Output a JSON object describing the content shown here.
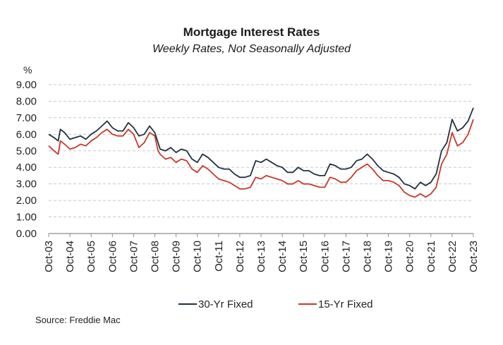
{
  "chart_data": {
    "type": "line",
    "title": "Mortgage Interest Rates",
    "subtitle": "Weekly Rates, Not Seasonally Adjusted",
    "ylabel": "%",
    "xlabel": "",
    "ylim": [
      0,
      9
    ],
    "yticks": [
      "0.00",
      "1.00",
      "2.00",
      "3.00",
      "4.00",
      "5.00",
      "6.00",
      "7.00",
      "8.00",
      "9.00"
    ],
    "xticks": [
      "Oct-03",
      "Oct-04",
      "Oct-05",
      "Oct-06",
      "Oct-07",
      "Oct-08",
      "Oct-09",
      "Oct-10",
      "Oct-11",
      "Oct-12",
      "Oct-13",
      "Oct-14",
      "Oct-15",
      "Oct-16",
      "Oct-17",
      "Oct-18",
      "Oct-19",
      "Oct-20",
      "Oct-21",
      "Oct-22",
      "Oct-23"
    ],
    "xlim": [
      2003.75,
      2023.75
    ],
    "grid": "horizontal-dashed",
    "legend_position": "bottom-center",
    "series": [
      {
        "name": "30-Yr Fixed",
        "color": "#1f3140",
        "x": [
          2003.75,
          2004.0,
          2004.2,
          2004.3,
          2004.5,
          2004.75,
          2005.0,
          2005.25,
          2005.5,
          2005.75,
          2006.0,
          2006.25,
          2006.5,
          2006.75,
          2007.0,
          2007.25,
          2007.5,
          2007.75,
          2008.0,
          2008.25,
          2008.5,
          2008.75,
          2008.9,
          2009.0,
          2009.25,
          2009.5,
          2009.75,
          2010.0,
          2010.25,
          2010.5,
          2010.75,
          2011.0,
          2011.25,
          2011.5,
          2011.75,
          2012.0,
          2012.25,
          2012.5,
          2012.75,
          2013.0,
          2013.25,
          2013.5,
          2013.75,
          2014.0,
          2014.25,
          2014.5,
          2014.75,
          2015.0,
          2015.25,
          2015.5,
          2015.75,
          2016.0,
          2016.25,
          2016.5,
          2016.75,
          2017.0,
          2017.25,
          2017.5,
          2017.75,
          2018.0,
          2018.25,
          2018.5,
          2018.75,
          2019.0,
          2019.25,
          2019.5,
          2019.75,
          2020.0,
          2020.25,
          2020.5,
          2020.75,
          2021.0,
          2021.25,
          2021.5,
          2021.75,
          2022.0,
          2022.25,
          2022.5,
          2022.75,
          2023.0,
          2023.25,
          2023.5,
          2023.75
        ],
        "values": [
          6.0,
          5.8,
          5.6,
          6.3,
          6.1,
          5.7,
          5.8,
          5.9,
          5.7,
          6.0,
          6.2,
          6.5,
          6.8,
          6.4,
          6.2,
          6.2,
          6.7,
          6.4,
          5.9,
          6.0,
          6.5,
          6.1,
          5.5,
          5.1,
          5.0,
          5.2,
          4.9,
          5.1,
          5.0,
          4.5,
          4.3,
          4.8,
          4.6,
          4.3,
          4.0,
          3.9,
          3.9,
          3.6,
          3.4,
          3.4,
          3.5,
          4.4,
          4.3,
          4.5,
          4.3,
          4.1,
          4.0,
          3.7,
          3.7,
          4.0,
          3.8,
          3.8,
          3.6,
          3.5,
          3.5,
          4.2,
          4.1,
          3.9,
          3.9,
          4.0,
          4.4,
          4.5,
          4.8,
          4.5,
          4.1,
          3.8,
          3.7,
          3.6,
          3.4,
          3.0,
          2.9,
          2.7,
          3.1,
          2.9,
          3.1,
          3.6,
          5.0,
          5.5,
          6.9,
          6.2,
          6.4,
          6.8,
          7.6
        ]
      },
      {
        "name": "15-Yr Fixed",
        "color": "#c8382a",
        "x": [
          2003.75,
          2004.0,
          2004.2,
          2004.3,
          2004.5,
          2004.75,
          2005.0,
          2005.25,
          2005.5,
          2005.75,
          2006.0,
          2006.25,
          2006.5,
          2006.75,
          2007.0,
          2007.25,
          2007.5,
          2007.75,
          2008.0,
          2008.25,
          2008.5,
          2008.75,
          2008.9,
          2009.0,
          2009.25,
          2009.5,
          2009.75,
          2010.0,
          2010.25,
          2010.5,
          2010.75,
          2011.0,
          2011.25,
          2011.5,
          2011.75,
          2012.0,
          2012.25,
          2012.5,
          2012.75,
          2013.0,
          2013.25,
          2013.5,
          2013.75,
          2014.0,
          2014.25,
          2014.5,
          2014.75,
          2015.0,
          2015.25,
          2015.5,
          2015.75,
          2016.0,
          2016.25,
          2016.5,
          2016.75,
          2017.0,
          2017.25,
          2017.5,
          2017.75,
          2018.0,
          2018.25,
          2018.5,
          2018.75,
          2019.0,
          2019.25,
          2019.5,
          2019.75,
          2020.0,
          2020.25,
          2020.5,
          2020.75,
          2021.0,
          2021.25,
          2021.5,
          2021.75,
          2022.0,
          2022.25,
          2022.5,
          2022.75,
          2023.0,
          2023.25,
          2023.5,
          2023.75
        ],
        "values": [
          5.3,
          5.0,
          4.8,
          5.6,
          5.4,
          5.1,
          5.2,
          5.4,
          5.3,
          5.6,
          5.8,
          6.1,
          6.3,
          6.0,
          5.9,
          5.9,
          6.3,
          6.0,
          5.2,
          5.5,
          6.1,
          5.9,
          5.0,
          4.8,
          4.5,
          4.6,
          4.3,
          4.5,
          4.4,
          3.9,
          3.7,
          4.1,
          3.9,
          3.6,
          3.3,
          3.2,
          3.1,
          2.9,
          2.7,
          2.7,
          2.8,
          3.4,
          3.3,
          3.5,
          3.4,
          3.3,
          3.2,
          3.0,
          3.0,
          3.2,
          3.0,
          3.0,
          2.9,
          2.8,
          2.8,
          3.4,
          3.3,
          3.1,
          3.1,
          3.4,
          3.8,
          4.0,
          4.2,
          3.9,
          3.5,
          3.2,
          3.2,
          3.1,
          2.9,
          2.5,
          2.3,
          2.2,
          2.4,
          2.2,
          2.4,
          2.8,
          4.2,
          4.8,
          6.1,
          5.3,
          5.5,
          6.0,
          6.9
        ]
      }
    ]
  },
  "source": "Source: Freddie Mac"
}
